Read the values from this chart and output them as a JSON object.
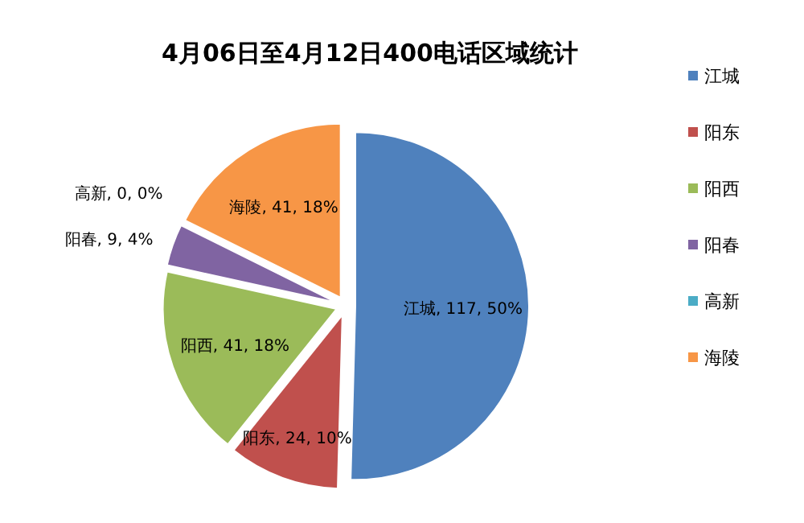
{
  "chart_data": {
    "type": "pie",
    "title": "4月06日至4月12日400电话区域统计",
    "categories": [
      "江城",
      "阳东",
      "阳西",
      "阳春",
      "高新",
      "海陵"
    ],
    "values": [
      117,
      24,
      41,
      9,
      0,
      41
    ],
    "value_labels": [
      ", 117, 50%",
      ", 24, 10%",
      ", 41, 18%",
      ", 9, 4%",
      ", 0, 0%",
      ", 41, 18%"
    ],
    "colors": [
      "#4f81bd",
      "#c0504d",
      "#9bbb59",
      "#8064a2",
      "#4bacc6",
      "#f79646"
    ],
    "legend": "right"
  }
}
